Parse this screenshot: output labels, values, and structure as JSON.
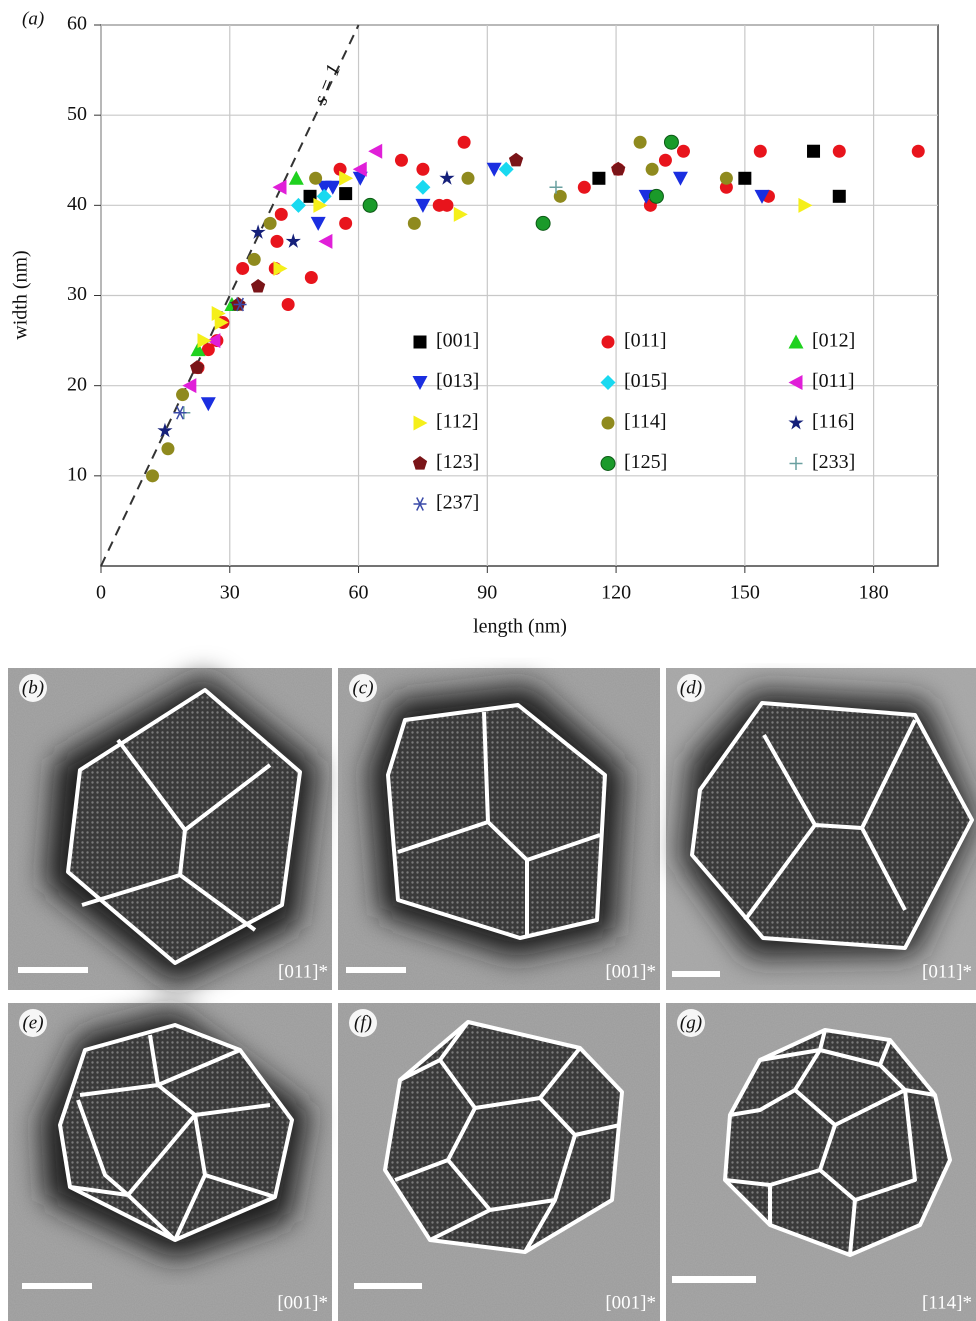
{
  "chart_data": {
    "type": "scatter",
    "panel_label": "(a)",
    "x_label": "length (nm)",
    "y_label": "width (nm)",
    "xlim": [
      0,
      195
    ],
    "ylim": [
      0,
      60
    ],
    "xticks": [
      0,
      30,
      60,
      90,
      120,
      150,
      180
    ],
    "yticks": [
      10,
      20,
      30,
      40,
      50,
      60
    ],
    "grid": true,
    "legend": "lower right",
    "reference_line": {
      "label": "s = 1",
      "slope": 1
    },
    "series": [
      {
        "name": "[001]",
        "color": "#000000",
        "marker": "square",
        "x": [
          48.7,
          57,
          116,
          150,
          166,
          172
        ],
        "values": [
          41,
          41.3,
          43,
          43,
          46,
          41
        ]
      },
      {
        "name": "[011]",
        "color": "#e8141c",
        "marker": "circle",
        "x": [
          43.6,
          40.6,
          41,
          42,
          49,
          55.7,
          57,
          70,
          75,
          78.8,
          80.6,
          84.6,
          112.6,
          120.5,
          128,
          131.5,
          135.7,
          145.7,
          153.6,
          155.5,
          172,
          190.4,
          27,
          25,
          22.6,
          33,
          28.4
        ],
        "values": [
          29,
          33,
          36,
          39,
          32,
          44,
          38,
          45,
          44,
          40,
          40,
          47,
          42,
          44,
          40,
          45,
          46,
          42,
          46,
          41,
          46,
          46,
          25,
          24,
          22,
          33,
          27
        ]
      },
      {
        "name": "[012]",
        "color": "#1fd11f",
        "marker": "triangle-up",
        "x": [
          45.5,
          22.6,
          30.5
        ],
        "values": [
          43,
          24,
          29
        ]
      },
      {
        "name": "[013]",
        "color": "#1a2ee0",
        "marker": "triangle-down",
        "x": [
          25,
          50.6,
          52,
          75,
          91.6,
          127,
          135,
          154,
          54,
          60.4
        ],
        "values": [
          18,
          38,
          42,
          40,
          44,
          41,
          43,
          41,
          42,
          43
        ]
      },
      {
        "name": "[015]",
        "color": "#19d9f0",
        "marker": "diamond",
        "x": [
          46,
          52,
          75,
          94.4
        ],
        "values": [
          40,
          41,
          42,
          44
        ]
      },
      {
        "name": "[011]",
        "color": "#e01fd8",
        "marker": "triangle-left",
        "x": [
          41.7,
          52.4,
          64,
          60.4,
          20.7,
          26.3
        ],
        "values": [
          42,
          36,
          46,
          44,
          20,
          25
        ]
      },
      {
        "name": "[112]",
        "color": "#f5ef1a",
        "marker": "triangle-right",
        "x": [
          41.7,
          51,
          57,
          83.7,
          164,
          28,
          27.3,
          24
        ],
        "values": [
          33,
          40,
          43,
          39,
          40,
          27,
          28,
          25
        ]
      },
      {
        "name": "[114]",
        "color": "#8f8a1e",
        "marker": "circle",
        "x": [
          12,
          15.6,
          19,
          35.7,
          39.4,
          50,
          73,
          85.5,
          107,
          125.6,
          128.4,
          145.7
        ],
        "values": [
          10,
          13,
          19,
          34,
          38,
          43,
          38,
          43,
          41,
          47,
          44,
          43
        ]
      },
      {
        "name": "[116]",
        "color": "#15207a",
        "marker": "star",
        "x": [
          14.9,
          36.6,
          44.8,
          80.6,
          31.7
        ],
        "values": [
          15,
          37,
          36,
          43,
          29
        ]
      },
      {
        "name": "[123]",
        "color": "#7a1418",
        "marker": "pentagon",
        "x": [
          22.4,
          36.6,
          96.7,
          120.5,
          32
        ],
        "values": [
          22,
          31,
          45,
          44,
          29
        ]
      },
      {
        "name": "[125]",
        "color": "#1a9a2a",
        "marker": "sphere",
        "x": [
          62.7,
          103,
          132.9,
          129.4
        ],
        "values": [
          40,
          38,
          47,
          41
        ]
      },
      {
        "name": "[233]",
        "color": "#6aa0a0",
        "marker": "plus",
        "x": [
          106,
          19.3
        ],
        "values": [
          42,
          17
        ]
      },
      {
        "name": "[237]",
        "color": "#3a4aa8",
        "marker": "asterisk",
        "x": [
          18.4,
          32.4
        ],
        "values": [
          17,
          29
        ]
      }
    ]
  },
  "panels": [
    {
      "label": "(b)",
      "zone_axis": "[011]*"
    },
    {
      "label": "(c)",
      "zone_axis": "[001]*"
    },
    {
      "label": "(d)",
      "zone_axis": "[011]*"
    },
    {
      "label": "(e)",
      "zone_axis": "[001]*"
    },
    {
      "label": "(f)",
      "zone_axis": "[001]*"
    },
    {
      "label": "(g)",
      "zone_axis": "[114]*"
    }
  ]
}
